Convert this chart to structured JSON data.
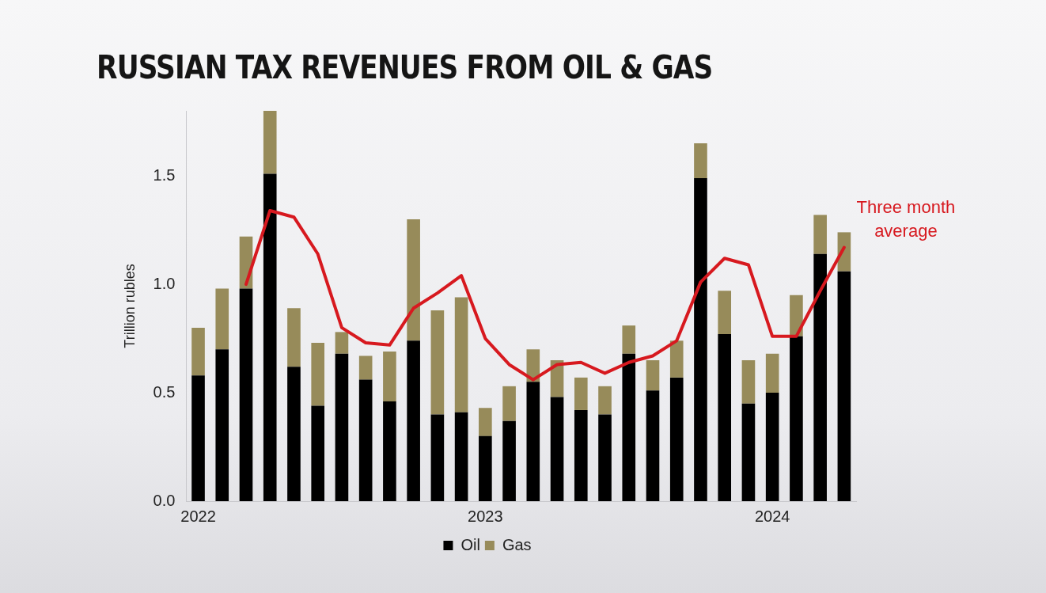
{
  "chart_data": {
    "type": "bar",
    "title": "RUSSIAN TAX REVENUES FROM OIL & GAS",
    "ylabel": "Trillion rubles",
    "categories": [
      "2022",
      null,
      null,
      null,
      null,
      null,
      null,
      null,
      null,
      null,
      null,
      null,
      "2023",
      null,
      null,
      null,
      null,
      null,
      null,
      null,
      null,
      null,
      null,
      null,
      "2024",
      null,
      null,
      null
    ],
    "stacked": true,
    "series": [
      {
        "name": "Oil",
        "color": "#000000",
        "values": [
          0.58,
          0.7,
          0.98,
          1.51,
          0.62,
          0.44,
          0.68,
          0.56,
          0.46,
          0.74,
          0.4,
          0.41,
          0.3,
          0.37,
          0.55,
          0.48,
          0.42,
          0.4,
          0.68,
          0.51,
          0.57,
          1.49,
          0.77,
          0.45,
          0.5,
          0.76,
          1.14,
          1.06
        ]
      },
      {
        "name": "Gas",
        "color": "#978b5a",
        "values": [
          0.22,
          0.28,
          0.24,
          0.29,
          0.27,
          0.29,
          0.1,
          0.11,
          0.23,
          0.56,
          0.48,
          0.53,
          0.13,
          0.16,
          0.15,
          0.17,
          0.15,
          0.13,
          0.13,
          0.14,
          0.17,
          0.16,
          0.2,
          0.2,
          0.18,
          0.19,
          0.18,
          0.18
        ]
      },
      {
        "name": "Three month average",
        "type": "line",
        "color": "#d7191f",
        "values": [
          null,
          null,
          1.0,
          1.34,
          1.31,
          1.14,
          0.8,
          0.73,
          0.72,
          0.89,
          0.96,
          1.04,
          0.75,
          0.63,
          0.56,
          0.63,
          0.64,
          0.59,
          0.64,
          0.67,
          0.74,
          1.01,
          1.12,
          1.09,
          0.76,
          0.76,
          0.97,
          1.17
        ]
      }
    ],
    "ylim": [
      0,
      1.8
    ],
    "yticks": [
      {
        "value": 0,
        "label": "0.0"
      },
      {
        "value": 0.5,
        "label": "0.5"
      },
      {
        "value": 1,
        "label": "1.0"
      },
      {
        "value": 1.5,
        "label": "1.5"
      }
    ],
    "grid": false,
    "legend": "bottom",
    "marker": "none"
  }
}
